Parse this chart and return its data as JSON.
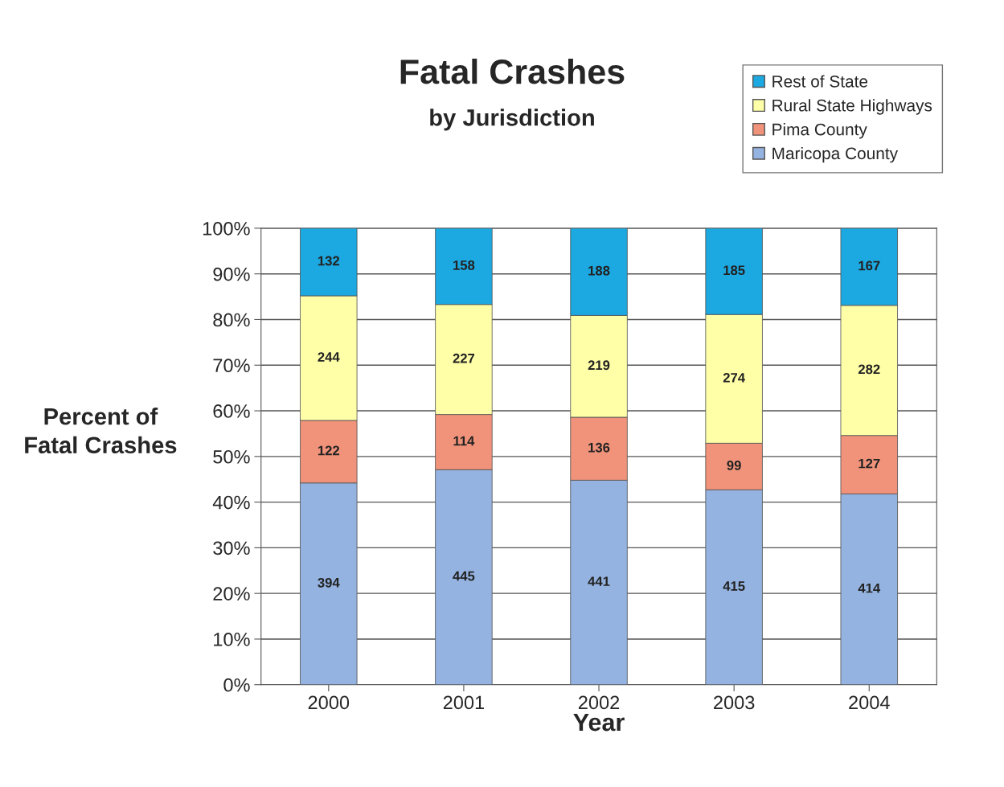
{
  "chart_data": {
    "type": "bar",
    "title": "Fatal Crashes",
    "subtitle": "by Jurisdiction",
    "xlabel": "Year",
    "ylabel": "Percent of\nFatal Crashes",
    "categories": [
      "2000",
      "2001",
      "2002",
      "2003",
      "2004"
    ],
    "stacked": true,
    "series": [
      {
        "name": "Maricopa County",
        "color": "#94b3e0",
        "values": [
          44.2,
          47.1,
          44.8,
          42.7,
          41.8
        ]
      },
      {
        "name": "Pima County",
        "color": "#f0937a",
        "values": [
          13.7,
          12.1,
          13.8,
          10.2,
          12.8
        ]
      },
      {
        "name": "Rural State Highways",
        "color": "#ffffa8",
        "values": [
          27.3,
          24.1,
          22.3,
          28.2,
          28.5
        ]
      },
      {
        "name": "Rest of State",
        "color": "#1ca8e0",
        "values": [
          14.8,
          16.7,
          19.1,
          18.9,
          16.9
        ]
      }
    ],
    "annotations": [
      "394",
      "122",
      "244",
      "132",
      "445",
      "114",
      "227",
      "158",
      "441",
      "136",
      "219",
      "188",
      "415",
      "99",
      "274",
      "185",
      "414",
      "127",
      "282",
      "167"
    ],
    "ylim": [
      0,
      100
    ],
    "yticks": [
      {
        "value": 0,
        "label": "0%"
      },
      {
        "value": 10,
        "label": "10%"
      },
      {
        "value": 20,
        "label": "20%"
      },
      {
        "value": 30,
        "label": "30%"
      },
      {
        "value": 40,
        "label": "40%"
      },
      {
        "value": 50,
        "label": "50%"
      },
      {
        "value": 60,
        "label": "60%"
      },
      {
        "value": 70,
        "label": "70%"
      },
      {
        "value": 80,
        "label": "80%"
      },
      {
        "value": 90,
        "label": "90%"
      },
      {
        "value": 100,
        "label": "100%"
      }
    ],
    "grid": "y",
    "legend": "top right"
  }
}
